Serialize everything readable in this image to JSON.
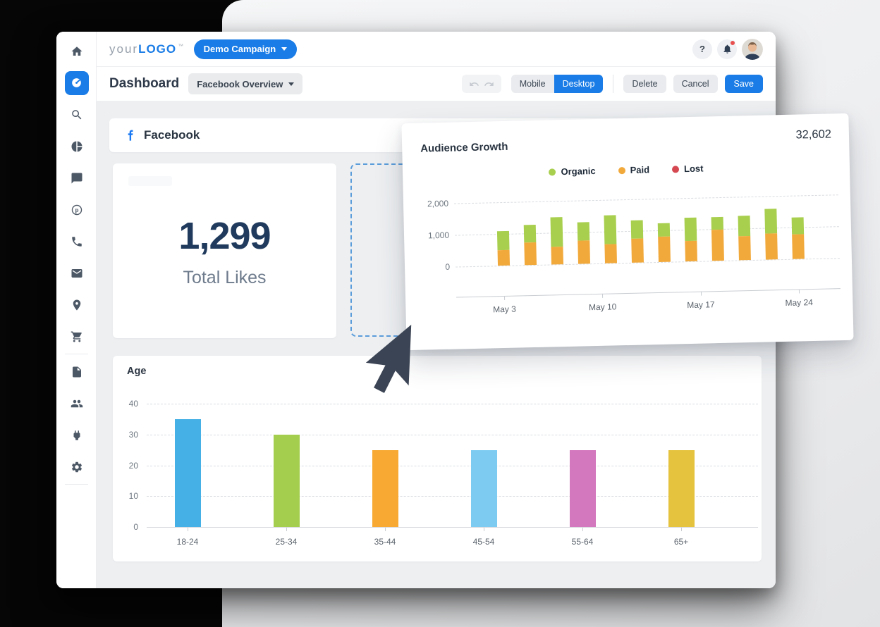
{
  "app": {
    "logo": {
      "prefix": "your",
      "brand": "LOGO",
      "tm": "TM"
    },
    "campaign_selector": "Demo Campaign",
    "page_title": "Dashboard",
    "dashboard_selector": "Facebook Overview",
    "header": {
      "help_label": "?"
    },
    "toolbar": {
      "mobile": "Mobile",
      "desktop": "Desktop",
      "delete": "Delete",
      "cancel": "Cancel",
      "save": "Save"
    }
  },
  "sidebar": {
    "items": [
      {
        "icon": "home"
      },
      {
        "icon": "dashboard",
        "active": true
      },
      {
        "icon": "search"
      },
      {
        "icon": "pie-chart"
      },
      {
        "icon": "comments"
      },
      {
        "icon": "pinterest"
      },
      {
        "icon": "phone"
      },
      {
        "icon": "email"
      },
      {
        "icon": "location"
      },
      {
        "icon": "cart",
        "divider_after": true
      },
      {
        "icon": "pages"
      },
      {
        "icon": "users"
      },
      {
        "icon": "integrations"
      },
      {
        "icon": "settings",
        "divider_after": true
      }
    ]
  },
  "section": {
    "title": "Facebook"
  },
  "widgets": {
    "total_likes": {
      "value": "1,299",
      "label": "Total Likes"
    }
  },
  "colors": {
    "accent_blue": "#1a7ce6",
    "facebook_blue": "#1877f2",
    "navy_text": "#1f3a5c"
  },
  "chart_data": [
    {
      "id": "audience_growth",
      "type": "bar",
      "stacked": true,
      "title": "Audience Growth",
      "total_label": "32,602",
      "legend": [
        {
          "label": "Organic",
          "color": "#a8cf4d"
        },
        {
          "label": "Paid",
          "color": "#f2a93b"
        },
        {
          "label": "Lost",
          "color": "#d54851"
        }
      ],
      "x_tick_labels": [
        "May 3",
        "May 10",
        "May 17",
        "May 24"
      ],
      "series": [
        {
          "name": "Paid",
          "color": "#f2a93b",
          "values": [
            500,
            700,
            550,
            730,
            600,
            760,
            790,
            640,
            980,
            760,
            820,
            780
          ]
        },
        {
          "name": "Organic",
          "color": "#a8cf4d",
          "values": [
            600,
            570,
            930,
            580,
            920,
            580,
            440,
            730,
            400,
            630,
            780,
            530
          ]
        },
        {
          "name": "Lost",
          "color": "#d54851",
          "values": [
            0,
            0,
            0,
            0,
            0,
            0,
            0,
            0,
            0,
            0,
            0,
            0
          ]
        }
      ],
      "ylim": [
        0,
        2000
      ],
      "yticks": [
        2000,
        1000,
        0
      ],
      "ytick_labels": [
        "2,000",
        "1,000",
        "0"
      ],
      "grid": "dashed",
      "legend_position": "top"
    },
    {
      "id": "age",
      "type": "bar",
      "title": "Age",
      "categories": [
        "18-24",
        "25-34",
        "35-44",
        "45-54",
        "55-64",
        "65+"
      ],
      "values": [
        35,
        30,
        25,
        25,
        25,
        25
      ],
      "colors": [
        "#45b0e5",
        "#a4ce4e",
        "#f7a933",
        "#7ecbf2",
        "#d377be",
        "#e5c33e"
      ],
      "ylim": [
        0,
        40
      ],
      "yticks": [
        40,
        30,
        20,
        10,
        0
      ],
      "ytick_labels": [
        "40",
        "30",
        "20",
        "10",
        "0"
      ],
      "grid": "dashed"
    }
  ]
}
